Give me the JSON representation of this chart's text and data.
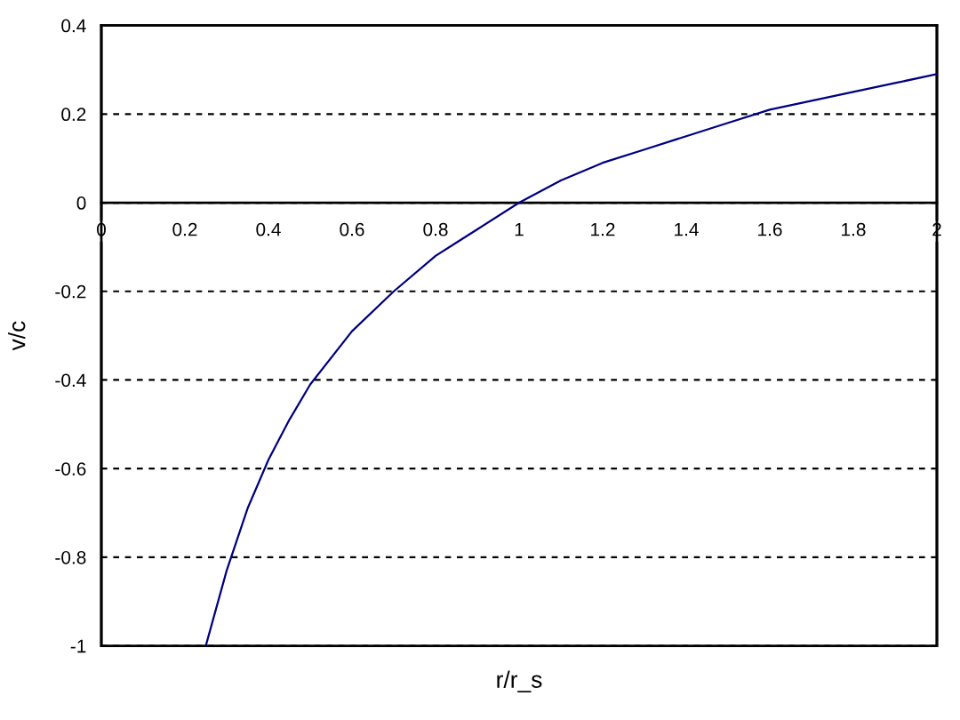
{
  "chart_data": {
    "type": "line",
    "xlabel": "r/r_s",
    "ylabel": "v/c",
    "x": [
      0.25,
      0.3,
      0.35,
      0.4,
      0.45,
      0.5,
      0.6,
      0.7,
      0.8,
      0.9,
      1,
      1.1,
      1.2,
      1.3,
      1.4,
      1.5,
      1.6,
      1.7,
      1.8,
      1.9,
      2
    ],
    "series": [
      {
        "color": "#000080",
        "values": [
          -1.0,
          -0.83,
          -0.69,
          -0.58,
          -0.49,
          -0.41,
          -0.29,
          -0.2,
          -0.12,
          -0.06,
          0,
          0.05,
          0.09,
          0.12,
          0.15,
          0.18,
          0.21,
          0.23,
          0.25,
          0.27,
          0.29
        ]
      }
    ],
    "xlim": [
      0,
      2
    ],
    "xticks": [
      0,
      0.2,
      0.4,
      0.6,
      0.8,
      1,
      1.2,
      1.4,
      1.6,
      1.8,
      2
    ],
    "ylim": [
      -1,
      0.4
    ],
    "yticks": [
      -1,
      -0.8,
      -0.6,
      -0.4,
      -0.2,
      0,
      0.2,
      0.4
    ],
    "grid": "y"
  }
}
